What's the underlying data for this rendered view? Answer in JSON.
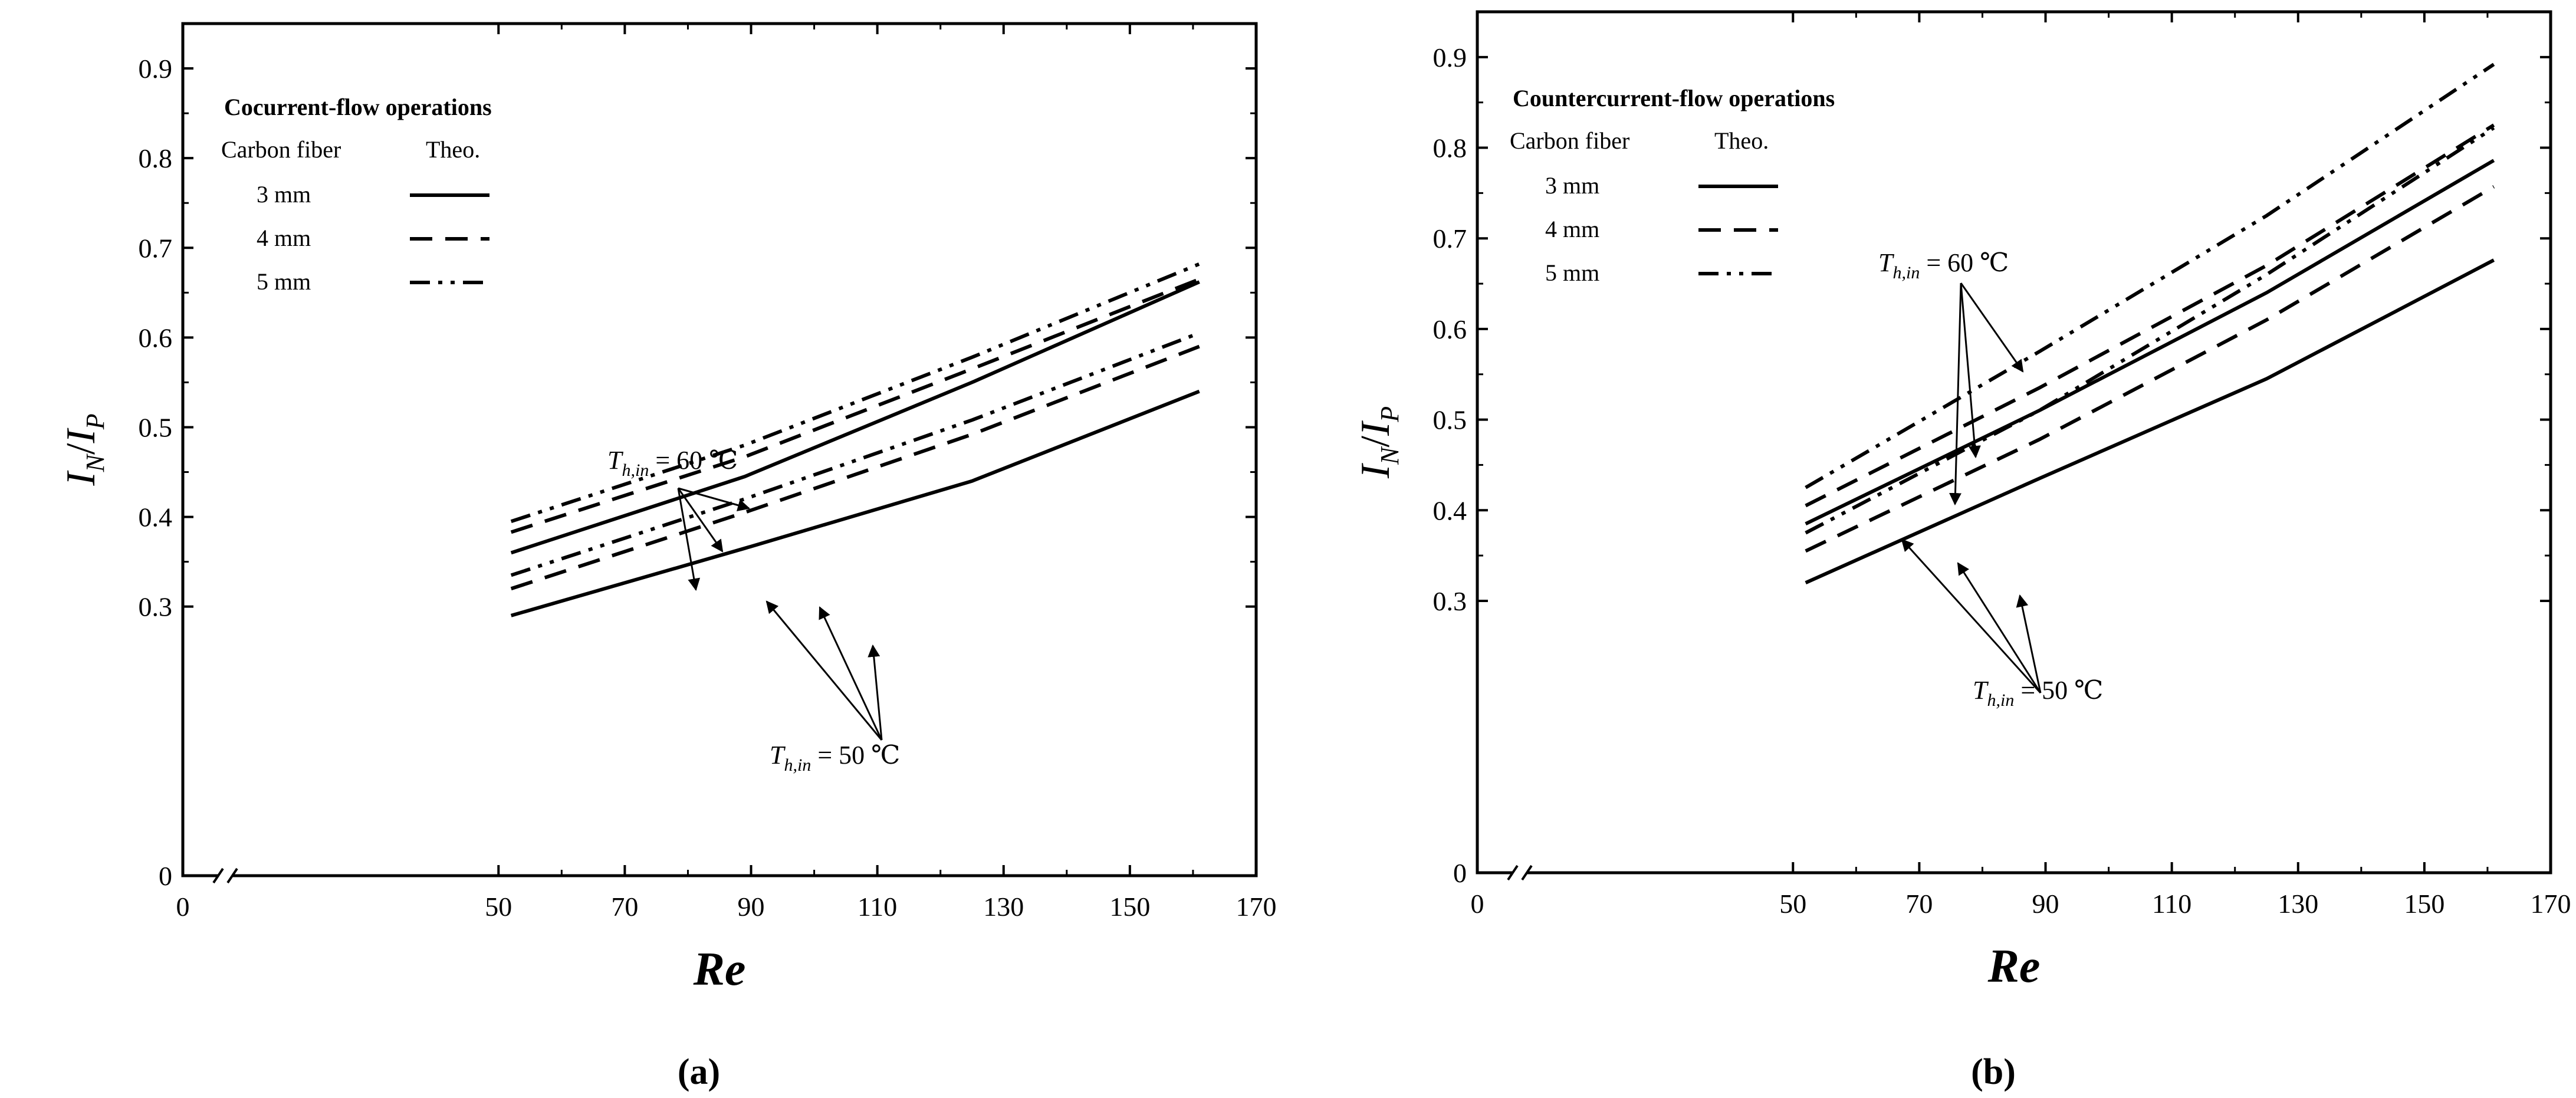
{
  "chart_data": [
    {
      "type": "line",
      "panel_label": "(a)",
      "xlabel": "Re",
      "ylabel": "I_N/I_P",
      "ylabel_parts": {
        "main1": "I",
        "sub1": "N",
        "slash": "/",
        "main2": "I",
        "sub2": "P"
      },
      "xlim": [
        0,
        170
      ],
      "ylim": [
        0,
        0.95
      ],
      "axis_break": true,
      "x_ticks": [
        "0",
        "50",
        "70",
        "90",
        "110",
        "130",
        "150",
        "170"
      ],
      "y_ticks": [
        "0",
        "0.3",
        "0.4",
        "0.5",
        "0.6",
        "0.7",
        "0.8",
        "0.9"
      ],
      "legend": {
        "title": "Cocurrent-flow operations",
        "header_left": "Carbon fiber",
        "header_right": "Theo.",
        "entries": [
          "3 mm",
          "4 mm",
          "5 mm"
        ],
        "placement": "top-left"
      },
      "annotations": [
        {
          "text_main": "T",
          "text_sub": "h,in",
          "text_rest": " = 60 ℃"
        },
        {
          "text_main": "T",
          "text_sub": "h,in",
          "text_rest": " = 50 ℃"
        }
      ],
      "series": [
        {
          "name": "3 mm",
          "style": "solid",
          "group": "60",
          "x": [
            52,
            89,
            125,
            161
          ],
          "y": [
            0.36,
            0.445,
            0.55,
            0.662
          ]
        },
        {
          "name": "4 mm",
          "style": "dash",
          "group": "60",
          "x": [
            52,
            89,
            125,
            161
          ],
          "y": [
            0.383,
            0.467,
            0.565,
            0.665
          ]
        },
        {
          "name": "5 mm",
          "style": "dashdotdot",
          "group": "60",
          "x": [
            52,
            89,
            125,
            161
          ],
          "y": [
            0.395,
            0.48,
            0.578,
            0.682
          ]
        },
        {
          "name": "3 mm",
          "style": "solid",
          "group": "50",
          "x": [
            52,
            89,
            125,
            161
          ],
          "y": [
            0.29,
            0.365,
            0.44,
            0.54
          ]
        },
        {
          "name": "4 mm",
          "style": "dash",
          "group": "50",
          "x": [
            52,
            89,
            125,
            161
          ],
          "y": [
            0.32,
            0.405,
            0.492,
            0.59
          ]
        },
        {
          "name": "5 mm",
          "style": "dashdotdot",
          "group": "50",
          "x": [
            52,
            89,
            125,
            161
          ],
          "y": [
            0.335,
            0.42,
            0.508,
            0.605
          ]
        }
      ]
    },
    {
      "type": "line",
      "panel_label": "(b)",
      "xlabel": "Re",
      "ylabel": "I_N/I_P",
      "ylabel_parts": {
        "main1": "I",
        "sub1": "N",
        "slash": "/",
        "main2": "I",
        "sub2": "P"
      },
      "xlim": [
        0,
        170
      ],
      "ylim": [
        0,
        0.95
      ],
      "axis_break": true,
      "x_ticks": [
        "0",
        "50",
        "70",
        "90",
        "110",
        "130",
        "150",
        "170"
      ],
      "y_ticks": [
        "0",
        "0.3",
        "0.4",
        "0.5",
        "0.6",
        "0.7",
        "0.8",
        "0.9"
      ],
      "legend": {
        "title": "Countercurrent-flow operations",
        "header_left": "Carbon fiber",
        "header_right": "Theo.",
        "entries": [
          "3 mm",
          "4 mm",
          "5 mm"
        ],
        "placement": "top-left"
      },
      "annotations": [
        {
          "text_main": "T",
          "text_sub": "h,in",
          "text_rest": " = 60 ℃"
        },
        {
          "text_main": "T",
          "text_sub": "h,in",
          "text_rest": " = 50 ℃"
        }
      ],
      "series": [
        {
          "name": "3 mm",
          "style": "solid",
          "group": "60",
          "x": [
            52,
            89,
            125,
            161
          ],
          "y": [
            0.385,
            0.51,
            0.64,
            0.786
          ]
        },
        {
          "name": "4 mm",
          "style": "dash",
          "group": "60",
          "x": [
            52,
            89,
            125,
            161
          ],
          "y": [
            0.405,
            0.535,
            0.67,
            0.825
          ]
        },
        {
          "name": "5 mm",
          "style": "dashdotdot",
          "group": "60",
          "x": [
            52,
            89,
            125,
            161
          ],
          "y": [
            0.425,
            0.575,
            0.725,
            0.892
          ]
        },
        {
          "name": "3 mm",
          "style": "solid",
          "group": "50",
          "x": [
            52,
            89,
            125,
            161
          ],
          "y": [
            0.32,
            0.435,
            0.545,
            0.676
          ]
        },
        {
          "name": "4 mm",
          "style": "dash",
          "group": "50",
          "x": [
            52,
            89,
            125,
            161
          ],
          "y": [
            0.355,
            0.478,
            0.61,
            0.757
          ]
        },
        {
          "name": "5 mm",
          "style": "dashdotdot",
          "group": "50",
          "x": [
            52,
            89,
            125,
            161
          ],
          "y": [
            0.375,
            0.51,
            0.66,
            0.822
          ]
        }
      ]
    }
  ]
}
